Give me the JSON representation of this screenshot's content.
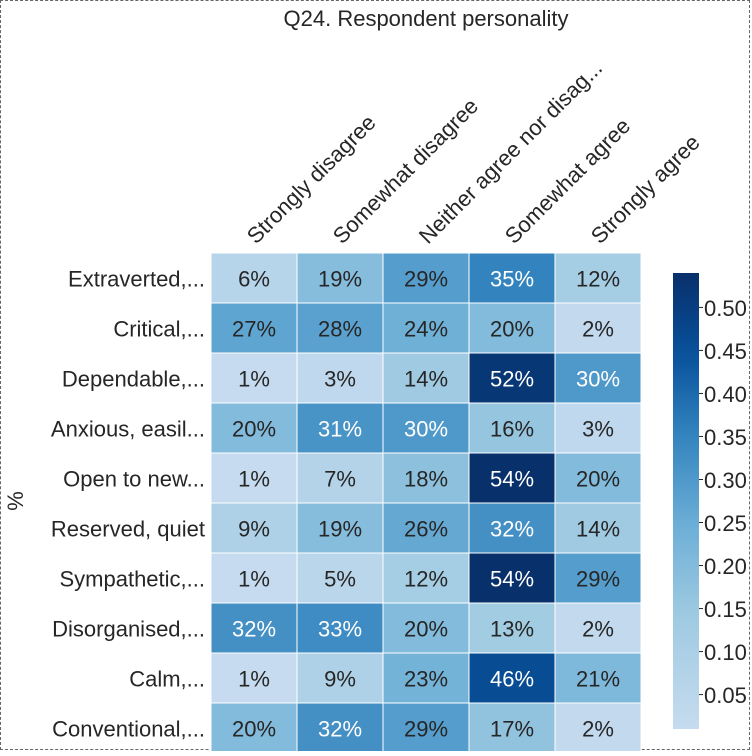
{
  "chart_data": {
    "type": "heatmap",
    "title": "Q24. Respondent personality",
    "ylabel": "%",
    "xlabel": "",
    "columns": [
      "Strongly disagree",
      "Somewhat disagree",
      "Neither agree nor disag...",
      "Somewhat agree",
      "Strongly agree"
    ],
    "rows": [
      "Extraverted,...",
      "Critical,...",
      "Dependable,...",
      "Anxious, easil...",
      "Open to new...",
      "Reserved, quiet",
      "Sympathetic,...",
      "Disorganised,...",
      "Calm,...",
      "Conventional,..."
    ],
    "values": [
      [
        0.06,
        0.19,
        0.29,
        0.35,
        0.12
      ],
      [
        0.27,
        0.28,
        0.24,
        0.2,
        0.02
      ],
      [
        0.01,
        0.03,
        0.14,
        0.52,
        0.3
      ],
      [
        0.2,
        0.31,
        0.3,
        0.16,
        0.03
      ],
      [
        0.01,
        0.07,
        0.18,
        0.54,
        0.2
      ],
      [
        0.09,
        0.19,
        0.26,
        0.32,
        0.14
      ],
      [
        0.01,
        0.05,
        0.12,
        0.54,
        0.29
      ],
      [
        0.32,
        0.33,
        0.2,
        0.13,
        0.02
      ],
      [
        0.01,
        0.09,
        0.23,
        0.46,
        0.21
      ],
      [
        0.2,
        0.32,
        0.29,
        0.17,
        0.02
      ]
    ],
    "value_labels": [
      [
        "6%",
        "19%",
        "29%",
        "35%",
        "12%"
      ],
      [
        "27%",
        "28%",
        "24%",
        "20%",
        "2%"
      ],
      [
        "1%",
        "3%",
        "14%",
        "52%",
        "30%"
      ],
      [
        "20%",
        "31%",
        "30%",
        "16%",
        "3%"
      ],
      [
        "1%",
        "7%",
        "18%",
        "54%",
        "20%"
      ],
      [
        "9%",
        "19%",
        "26%",
        "32%",
        "14%"
      ],
      [
        "1%",
        "5%",
        "12%",
        "54%",
        "29%"
      ],
      [
        "32%",
        "33%",
        "20%",
        "13%",
        "2%"
      ],
      [
        "1%",
        "9%",
        "23%",
        "46%",
        "21%"
      ],
      [
        "20%",
        "32%",
        "29%",
        "17%",
        "2%"
      ]
    ],
    "colorscale": {
      "name": "Blues",
      "min": 0.01,
      "max": 0.54,
      "ticks": [
        "0.05",
        "0.10",
        "0.15",
        "0.20",
        "0.25",
        "0.30",
        "0.35",
        "0.40",
        "0.45",
        "0.50"
      ]
    }
  }
}
